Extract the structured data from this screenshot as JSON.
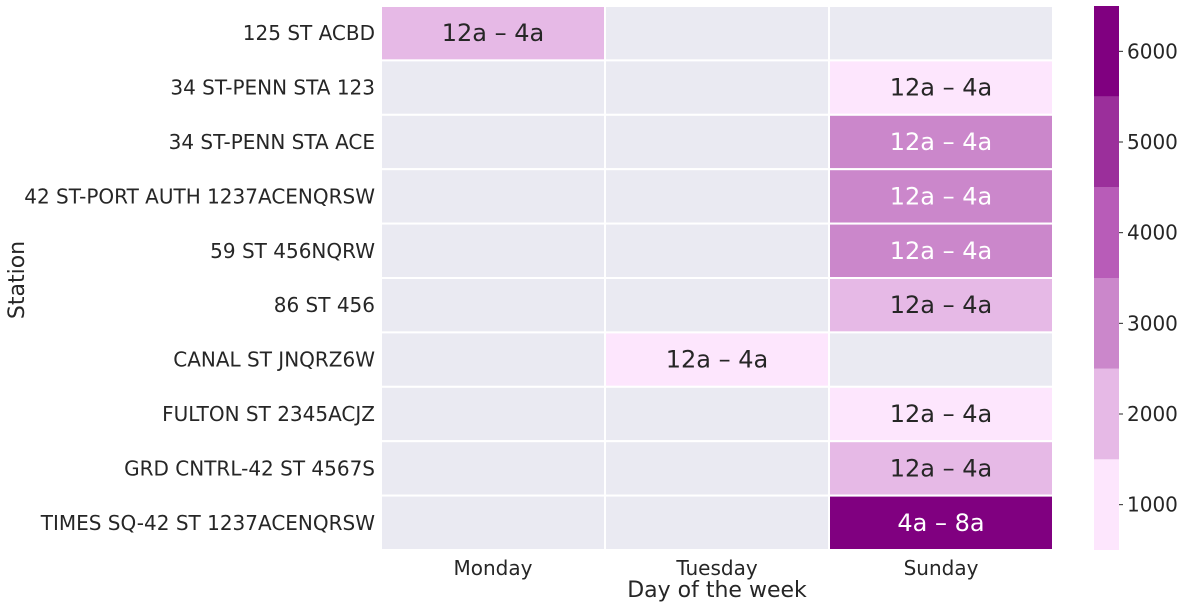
{
  "chart_data": {
    "type": "heatmap",
    "title": "",
    "xlabel": "Day of the week",
    "ylabel": "Station",
    "columns": [
      "Monday",
      "Tuesday",
      "Sunday"
    ],
    "rows": [
      "125 ST ACBD",
      "34 ST-PENN STA 123",
      "34 ST-PENN STA ACE",
      "42 ST-PORT AUTH 1237ACENQRSW",
      "59 ST 456NQRW",
      "86 ST 456",
      "CANAL ST JNQRZ6W",
      "FULTON ST 2345ACJZ",
      "GRD CNTRL-42 ST 4567S",
      "TIMES SQ-42 ST 1237ACENQRSW"
    ],
    "cells": [
      {
        "row": 0,
        "col": 0,
        "value": 2000,
        "label": "12a – 4a"
      },
      {
        "row": 1,
        "col": 2,
        "value": 1000,
        "label": "12a – 4a"
      },
      {
        "row": 2,
        "col": 2,
        "value": 3000,
        "label": "12a – 4a"
      },
      {
        "row": 3,
        "col": 2,
        "value": 3000,
        "label": "12a – 4a"
      },
      {
        "row": 4,
        "col": 2,
        "value": 3000,
        "label": "12a – 4a"
      },
      {
        "row": 5,
        "col": 2,
        "value": 2000,
        "label": "12a – 4a"
      },
      {
        "row": 6,
        "col": 1,
        "value": 1000,
        "label": "12a – 4a"
      },
      {
        "row": 7,
        "col": 2,
        "value": 1000,
        "label": "12a – 4a"
      },
      {
        "row": 8,
        "col": 2,
        "value": 2000,
        "label": "12a – 4a"
      },
      {
        "row": 9,
        "col": 2,
        "value": 6000,
        "label": "4a – 8a"
      }
    ],
    "colorbar": {
      "range": [
        500,
        6500
      ],
      "ticks": [
        1000,
        2000,
        3000,
        4000,
        5000,
        6000
      ],
      "bins": [
        {
          "from": 500,
          "to": 1500,
          "color": "#fde6fd"
        },
        {
          "from": 1500,
          "to": 2500,
          "color": "#e6b9e6"
        },
        {
          "from": 2500,
          "to": 3500,
          "color": "#cb87cb"
        },
        {
          "from": 3500,
          "to": 4500,
          "color": "#b85cb8"
        },
        {
          "from": 4500,
          "to": 5500,
          "color": "#9b2f9b"
        },
        {
          "from": 5500,
          "to": 6500,
          "color": "#800080"
        }
      ]
    },
    "missing_color": "#eaeaf2",
    "grid_line_color": "#ffffff",
    "dark_text_color": "#262626",
    "light_text_color": "#ffffff"
  }
}
